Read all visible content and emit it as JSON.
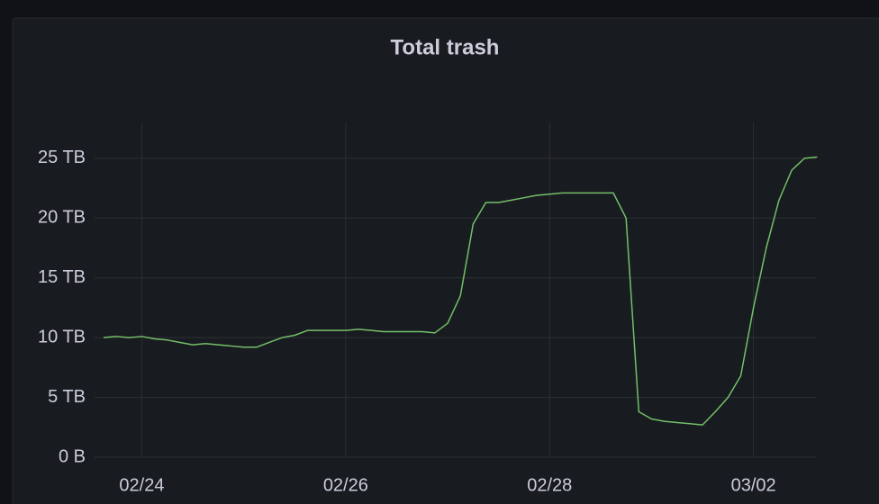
{
  "chart_data": {
    "type": "line",
    "title": "Total trash",
    "categories": [
      null,
      null,
      null,
      "02/24",
      null,
      null,
      null,
      null,
      null,
      null,
      null,
      null,
      null,
      null,
      null,
      null,
      null,
      null,
      null,
      "02/26",
      null,
      null,
      null,
      null,
      null,
      null,
      null,
      null,
      null,
      null,
      null,
      null,
      null,
      null,
      null,
      "02/28",
      null,
      null,
      null,
      null,
      null,
      null,
      null,
      null,
      null,
      null,
      null,
      null,
      null,
      null,
      null,
      "03/02",
      null,
      null,
      null,
      null,
      null
    ],
    "values": [
      10.0,
      10.1,
      10.0,
      10.1,
      9.9,
      9.8,
      9.6,
      9.4,
      9.5,
      9.4,
      9.3,
      9.2,
      9.2,
      9.6,
      10.0,
      10.2,
      10.6,
      10.6,
      10.6,
      10.6,
      10.7,
      10.6,
      10.5,
      10.5,
      10.5,
      10.5,
      10.4,
      11.2,
      13.5,
      19.5,
      21.3,
      21.3,
      21.5,
      21.7,
      21.9,
      22.0,
      22.1,
      22.1,
      22.1,
      22.1,
      22.1,
      20.0,
      3.8,
      3.2,
      3.0,
      2.9,
      2.8,
      2.7,
      3.8,
      5.0,
      6.8,
      12.5,
      17.5,
      21.5,
      24.0,
      25.0,
      25.1
    ],
    "color": "#73bf69",
    "ylim": [
      0,
      28
    ],
    "yticks": [
      {
        "value": 0,
        "label": "0 B"
      },
      {
        "value": 5,
        "label": "5 TB"
      },
      {
        "value": 10,
        "label": "10 TB"
      },
      {
        "value": 15,
        "label": "15 TB"
      },
      {
        "value": 20,
        "label": "20 TB"
      },
      {
        "value": 25,
        "label": "25 TB"
      }
    ],
    "grid": true
  }
}
